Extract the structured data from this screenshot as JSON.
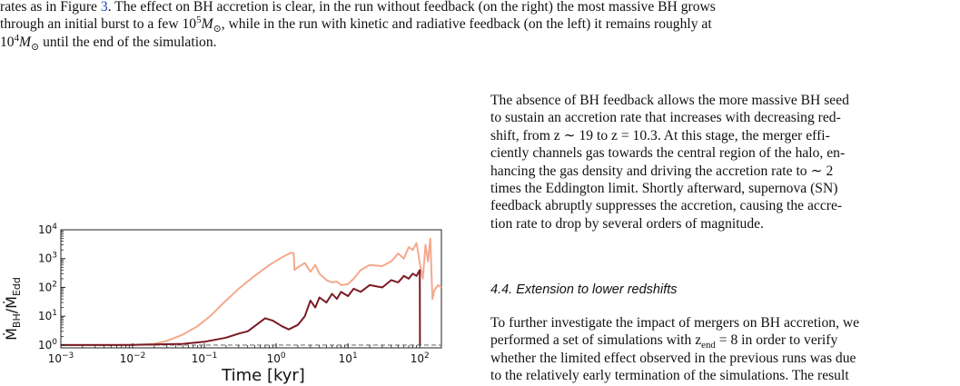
{
  "top_paragraph": {
    "part1": "rates as in Figure ",
    "figure_ref": "3",
    "part2": ". The effect on BH accretion is clear, in the run without feedback (on the right) the most massive BH grows",
    "line2a": "through an initial burst to a few 10",
    "line2_exp": "5",
    "line2_msun": "M",
    "line2b": ", while in the run with kinetic and radiative feedback (on the left) it remains roughly at",
    "line3a": "10",
    "line3_exp": "4",
    "line3_msun": "M",
    "line3b": " until the end of the simulation.",
    "sun_symbol": "⊙"
  },
  "right_paragraph_1": {
    "lines": [
      "The absence of BH feedback allows the more massive BH seed",
      "to sustain an accretion rate that increases with decreasing red-",
      "shift, from z ∼ 19 to z = 10.3. At this stage, the merger effi-",
      "ciently channels gas towards the central region of the halo, en-",
      "hancing the gas density and driving the accretion rate to ∼ 2",
      "times the Eddington limit. Shortly afterward, supernova (SN)",
      "feedback abruptly suppresses the accretion, causing the accre-",
      "tion rate to drop by several orders of magnitude."
    ]
  },
  "section_heading": "4.4. Extension to lower redshifts",
  "right_paragraph_2": {
    "lines": [
      "To further investigate the impact of mergers on BH accretion, we",
      "performed a set of simulations with z",
      "whether the limited effect observed in the previous runs was due",
      "to the relatively early termination of the simulations. The result"
    ],
    "line2_sub": "end",
    "line2_rest": " = 8 in order to verify"
  },
  "chart_data": {
    "type": "line",
    "xlabel": "Time [kyr]",
    "ylabel": "Ṁ_BH/Ṁ_Edd",
    "xscale": "log",
    "yscale": "log",
    "xlim": [
      0.001,
      200
    ],
    "ylim": [
      0.8,
      10000
    ],
    "x_ticks": [
      "10−3",
      "10−2",
      "10−1",
      "100",
      "101",
      "102"
    ],
    "y_ticks": [
      "100",
      "101",
      "102",
      "103",
      "104"
    ],
    "reference_line": {
      "y": 1,
      "style": "dashed",
      "color": "#777777"
    },
    "series": [
      {
        "color": "#f4a98c",
        "x": [
          0.001,
          0.01,
          0.02,
          0.03,
          0.05,
          0.08,
          0.12,
          0.2,
          0.3,
          0.5,
          0.8,
          1.2,
          1.6,
          1.75,
          1.8,
          2.0,
          2.5,
          3.0,
          3.5,
          4.0,
          5.0,
          6.0,
          7.0,
          8.0,
          10.0,
          12.0,
          15.0,
          20.0,
          30.0,
          40.0,
          50.0,
          60.0,
          70.0,
          80.0,
          90.0,
          100.0,
          110.0,
          120.0,
          130.0,
          140.0,
          150.0,
          160.0,
          180.0,
          200.0
        ],
        "y": [
          1.0,
          1.02,
          1.1,
          1.4,
          2.3,
          4.5,
          10,
          35,
          90,
          250,
          600,
          1100,
          1600,
          1550,
          400,
          500,
          700,
          350,
          600,
          300,
          180,
          150,
          160,
          120,
          130,
          200,
          400,
          600,
          550,
          800,
          1500,
          1000,
          2500,
          2000,
          3500,
          700,
          200,
          3000,
          800,
          5000,
          40,
          80,
          120,
          100
        ]
      },
      {
        "color": "#7a1a24",
        "x": [
          0.001,
          0.01,
          0.05,
          0.1,
          0.2,
          0.3,
          0.4,
          0.5,
          0.7,
          0.9,
          1.2,
          1.5,
          2.0,
          2.5,
          3.0,
          3.5,
          4.0,
          5.0,
          6.0,
          7.0,
          8.0,
          10.0,
          12.0,
          15.0,
          20.0,
          30.0,
          40.0,
          50.0,
          60.0,
          70.0,
          80.0,
          90.0,
          100.0,
          100.5
        ],
        "y": [
          1.0,
          1.01,
          1.1,
          1.3,
          1.8,
          2.5,
          3.0,
          4.5,
          8.5,
          7.0,
          4.5,
          3.5,
          5.0,
          10,
          35,
          20,
          45,
          30,
          60,
          40,
          70,
          50,
          90,
          70,
          120,
          100,
          180,
          150,
          250,
          200,
          300,
          250,
          400,
          1.0
        ]
      }
    ]
  }
}
